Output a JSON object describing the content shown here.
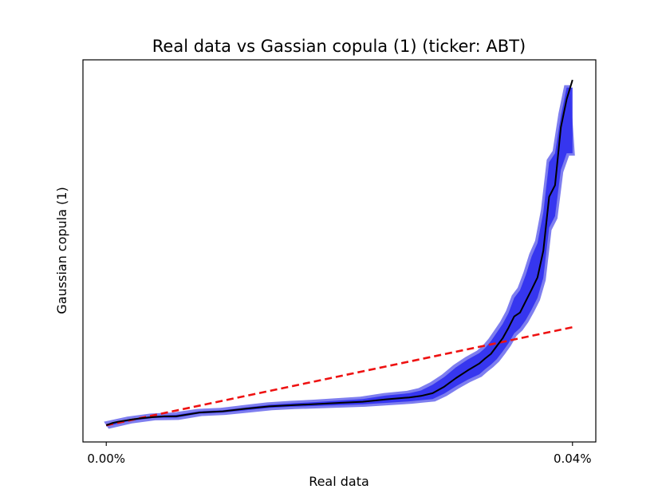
{
  "chart_data": {
    "type": "line",
    "title": "Real data vs Gassian copula (1) (ticker: ABT)",
    "xlabel": "Real data",
    "ylabel": "Gaussian copula (1)",
    "xlim": [
      -2e-05,
      0.00042
    ],
    "ylim": [
      -4.33e-05,
      0.000947
    ],
    "x_ticks": [
      {
        "value": 0.0,
        "label": "0.00%"
      },
      {
        "value": 0.0004,
        "label": "0.04%"
      }
    ],
    "grid": false,
    "legend": "none",
    "colors": {
      "median": "#000000",
      "band_outer": "#7777ee",
      "band_inner": "#3333ee",
      "reference": "#ee1111"
    },
    "series": [
      {
        "role": "median",
        "x": [
          0.0,
          5e-06,
          1e-05,
          2e-05,
          3e-05,
          4e-05,
          5e-05,
          6e-05,
          8e-05,
          0.0001,
          0.00012,
          0.00014,
          0.00016,
          0.00018,
          0.0002,
          0.00022,
          0.00024,
          0.00026,
          0.00027,
          0.00028,
          0.00029,
          0.0003,
          0.00031,
          0.00032,
          0.000325,
          0.00033,
          0.000335,
          0.00034,
          0.000345,
          0.00035,
          0.000355,
          0.00036,
          0.000365,
          0.00037,
          0.000375,
          0.00038,
          0.000385,
          0.00039,
          0.000395,
          0.0004
        ],
        "y": [
          0.0,
          5.5e-06,
          9e-06,
          1.4e-05,
          1.8e-05,
          2.1e-05,
          2.3e-05,
          2.3e-05,
          3.3e-05,
          3.6e-05,
          4.3e-05,
          4.9e-05,
          5.2e-05,
          5.5e-05,
          5.8e-05,
          6.1e-05,
          6.7e-05,
          7.2e-05,
          7.6e-05,
          8.3e-05,
          0.0001,
          0.000122,
          0.000142,
          0.00016,
          0.000173,
          0.000185,
          0.000205,
          0.000225,
          0.000252,
          0.000282,
          0.000292,
          0.000322,
          0.000352,
          0.000383,
          0.000452,
          0.000592,
          0.000622,
          0.000772,
          0.000845,
          0.000895
        ]
      },
      {
        "role": "band-upper",
        "x": [
          0.0,
          2e-05,
          4e-05,
          6e-05,
          8e-05,
          0.0001,
          0.00012,
          0.00014,
          0.00016,
          0.00018,
          0.0002,
          0.00022,
          0.00024,
          0.00026,
          0.00027,
          0.00028,
          0.00029,
          0.0003,
          0.00031,
          0.00032,
          0.000325,
          0.00033,
          0.000335,
          0.00034,
          0.000345,
          0.00035,
          0.000355,
          0.00036,
          0.000365,
          0.00037,
          0.000375,
          0.00038,
          0.000385,
          0.00039,
          0.000395,
          0.0004
        ],
        "y": [
          3e-06,
          1.6e-05,
          2.4e-05,
          2.7e-05,
          3.6e-05,
          3.9e-05,
          4.6e-05,
          5.3e-05,
          5.7e-05,
          6e-05,
          6.4e-05,
          6.8e-05,
          7.7e-05,
          8.3e-05,
          9e-05,
          0.000105,
          0.000125,
          0.00015,
          0.00017,
          0.000187,
          0.0002,
          0.000218,
          0.00024,
          0.000262,
          0.00029,
          0.00033,
          0.00035,
          0.00039,
          0.000438,
          0.000472,
          0.000552,
          0.000682,
          0.000705,
          0.000802,
          0.000875,
          0.000875
        ]
      },
      {
        "role": "band-lower",
        "x": [
          0.0,
          2e-05,
          4e-05,
          6e-05,
          8e-05,
          0.0001,
          0.00012,
          0.00014,
          0.00016,
          0.00018,
          0.0002,
          0.00022,
          0.00024,
          0.00026,
          0.00027,
          0.00028,
          0.00029,
          0.0003,
          0.00031,
          0.00032,
          0.000325,
          0.00033,
          0.000335,
          0.00034,
          0.000345,
          0.00035,
          0.000355,
          0.00036,
          0.000365,
          0.00037,
          0.000375,
          0.00038,
          0.000385,
          0.00039,
          0.000395,
          0.0004
        ],
        "y": [
          -3e-06,
          1.1e-05,
          1.9e-05,
          2e-05,
          3e-05,
          3.3e-05,
          3.9e-05,
          4.5e-05,
          4.8e-05,
          5e-05,
          5.2e-05,
          5.4e-05,
          5.8e-05,
          6.2e-05,
          6.5e-05,
          6.8e-05,
          8.2e-05,
          0.000101,
          0.000118,
          0.000132,
          0.000145,
          0.000157,
          0.000171,
          0.000191,
          0.000212,
          0.000238,
          0.000252,
          0.000273,
          0.0003,
          0.00033,
          0.000382,
          0.000512,
          0.000542,
          0.000662,
          0.000705,
          0.000705
        ]
      },
      {
        "role": "reference",
        "style": "dashed",
        "x": [
          0.0,
          0.0004
        ],
        "y": [
          0.0,
          0.000254
        ]
      }
    ]
  }
}
